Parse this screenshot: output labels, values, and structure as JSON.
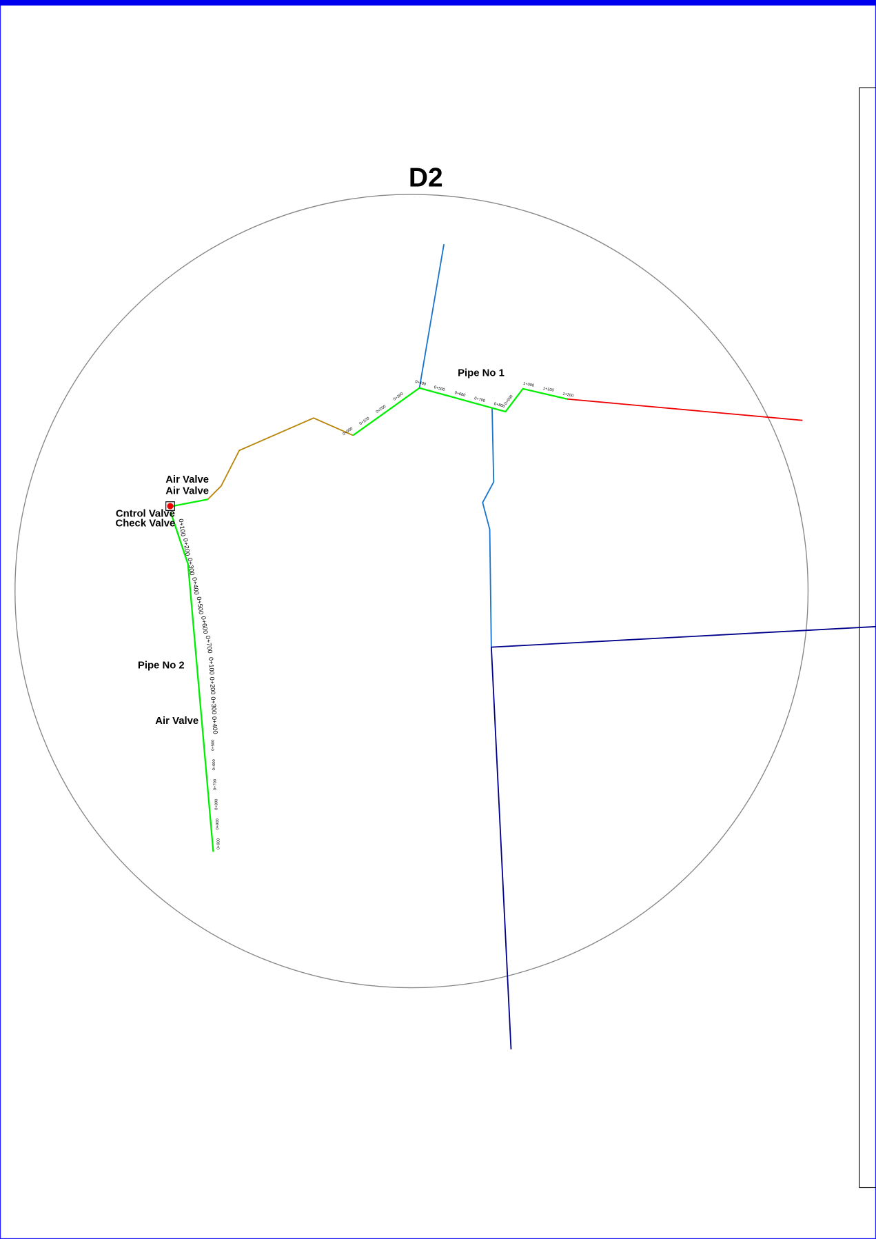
{
  "title": "D2",
  "labels": {
    "pipe_1": "Pipe No 1",
    "pipe_2": "Pipe No 2",
    "air_valve_1": "Air Valve",
    "air_valve_2": "Air Valve",
    "air_valve_3": "Air Valve",
    "control_valve": "Cntrol Valve",
    "check_valve": "Check Valve"
  },
  "chainage": {
    "pipe_1": [
      "0+000",
      "0+100",
      "0+200",
      "0+300",
      "0+400",
      "0+500",
      "0+600",
      "0+700",
      "0+800",
      "0+900",
      "1+000",
      "1+100",
      "1+200"
    ],
    "pipe_2_upper": [
      "0+100",
      "0+200",
      "0+300",
      "0+400",
      "0+500",
      "0+600",
      "0+700"
    ],
    "pipe_2_lower": [
      "0+100",
      "0+200",
      "0+300",
      "0+400",
      "0+500",
      "0+600",
      "0+700",
      "0+800",
      "0+900",
      "0+900"
    ]
  }
}
